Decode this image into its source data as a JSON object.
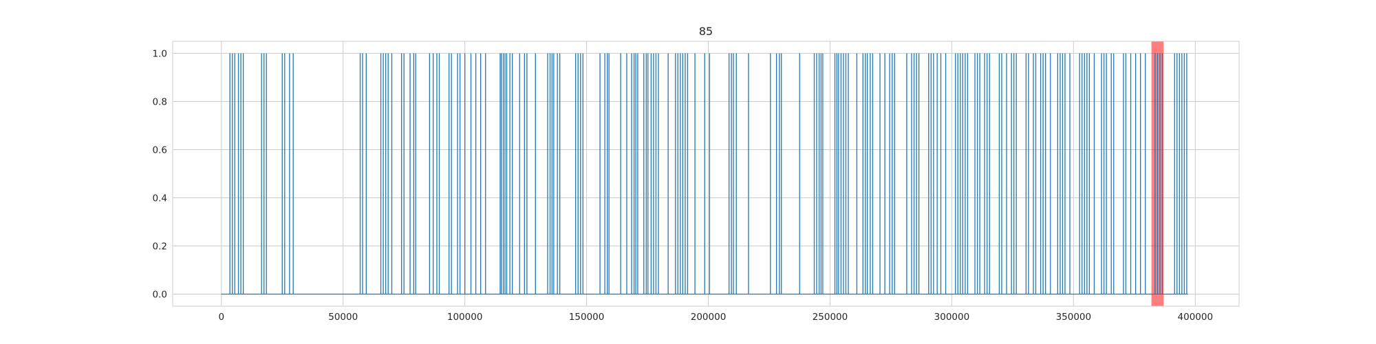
{
  "chart_data": {
    "type": "line",
    "title": "85",
    "xlabel": "",
    "ylabel": "",
    "xlim": [
      -20000,
      418000
    ],
    "ylim": [
      -0.05,
      1.05
    ],
    "x_ticks": [
      0,
      50000,
      100000,
      150000,
      200000,
      250000,
      300000,
      350000,
      400000
    ],
    "x_tick_labels": [
      "0",
      "50000",
      "100000",
      "150000",
      "200000",
      "250000",
      "300000",
      "350000",
      "400000"
    ],
    "y_ticks": [
      0.0,
      0.2,
      0.4,
      0.6,
      0.8,
      1.0
    ],
    "y_tick_labels": [
      "0.0",
      "0.2",
      "0.4",
      "0.6",
      "0.8",
      "1.0"
    ],
    "grid": true,
    "series_color": "#1f77b4",
    "highlight": {
      "x_start": 382000,
      "x_end": 387000,
      "color": "#ff0000",
      "alpha": 0.5
    },
    "x_range": [
      0,
      397000
    ],
    "spike_positions": [
      3500,
      4500,
      5500,
      7000,
      8000,
      9000,
      16500,
      17500,
      18500,
      25000,
      26000,
      28000,
      29500,
      57000,
      58000,
      59500,
      65500,
      66500,
      67500,
      68500,
      70000,
      74000,
      75000,
      77500,
      79000,
      79800,
      85500,
      87000,
      88500,
      89500,
      93500,
      94500,
      97000,
      98000,
      100000,
      102500,
      104500,
      106500,
      108500,
      114500,
      115000,
      115800,
      116500,
      117200,
      118500,
      119500,
      122500,
      124500,
      125500,
      129000,
      134000,
      135000,
      135800,
      136500,
      138000,
      139000,
      145500,
      146500,
      147500,
      148500,
      155500,
      157500,
      158500,
      159200,
      164000,
      166500,
      168500,
      169500,
      170200,
      171000,
      173500,
      174500,
      175200,
      176500,
      177500,
      178500,
      179500,
      183500,
      186500,
      187500,
      188500,
      189500,
      190500,
      191500,
      194500,
      198500,
      200500,
      208500,
      209500,
      210300,
      211500,
      216500,
      225500,
      228000,
      229200,
      230000,
      237500,
      243500,
      244500,
      245500,
      246300,
      247000,
      252000,
      252800,
      253500,
      254500,
      255500,
      256500,
      257500,
      261000,
      263500,
      264500,
      265300,
      266500,
      267500,
      270500,
      272500,
      274500,
      275500,
      276500,
      281500,
      283500,
      284500,
      285500,
      286500,
      290500,
      291500,
      292500,
      294000,
      295500,
      297500,
      301500,
      302500,
      303500,
      304500,
      305500,
      306500,
      309500,
      310500,
      311500,
      313500,
      314500,
      315500,
      319500,
      320500,
      322500,
      324500,
      325500,
      326500,
      330500,
      331500,
      333500,
      334500,
      336500,
      337500,
      338500,
      340500,
      343500,
      344500,
      345500,
      346500,
      348500,
      352500,
      353500,
      354500,
      355500,
      356500,
      358500,
      361500,
      362500,
      363500,
      365500,
      366500,
      370500,
      371500,
      373500,
      375500,
      377500,
      379500,
      383500,
      384500,
      385500,
      386500,
      391500,
      392500,
      393500,
      394500,
      395500,
      396500
    ]
  }
}
